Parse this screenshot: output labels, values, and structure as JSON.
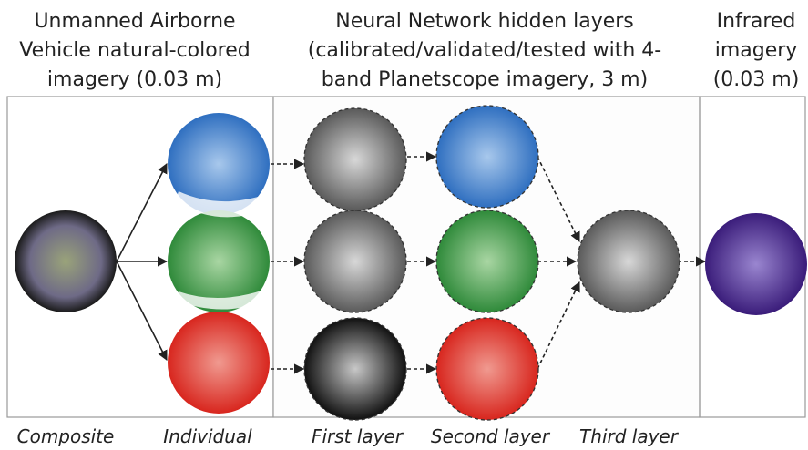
{
  "headers": [
    {
      "lines": [
        "Unmanned Airborne",
        "Vehicle natural-colored",
        "imagery (0.03 m)"
      ]
    },
    {
      "lines": [
        "Neural Network hidden layers",
        "(calibrated/validated/tested with 4-",
        "band Planetscope imagery, 3 m)"
      ]
    },
    {
      "lines": [
        "Infrared",
        "imagery",
        "(0.03 m)"
      ]
    }
  ],
  "captions": [
    "Composite",
    "Individual",
    "First layer",
    "Second layer",
    "Third layer"
  ]
}
